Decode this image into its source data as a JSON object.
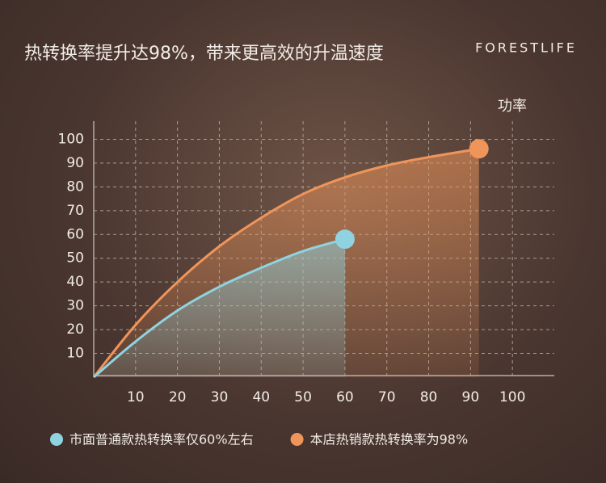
{
  "chart_data": {
    "type": "line",
    "title": "热转换率提升达98%，带来更高效的升温速度",
    "brand": "FORESTLIFE",
    "y_label": "功率",
    "series": [
      {
        "name": "市面普通款热转换率仅60%左右",
        "color": "#8fd3e0",
        "x": [
          0,
          10,
          20,
          30,
          40,
          50,
          60
        ],
        "values": [
          0,
          15,
          28,
          38,
          46,
          53,
          58
        ]
      },
      {
        "name": "本店热销款热转换率为98%",
        "color": "#f0955a",
        "x": [
          0,
          10,
          20,
          30,
          40,
          50,
          60,
          70,
          80,
          92
        ],
        "values": [
          0,
          22,
          40,
          55,
          67,
          77,
          84,
          89,
          92.5,
          96
        ]
      }
    ],
    "xlim": [
      0,
      110
    ],
    "ylim": [
      0,
      110
    ],
    "xticks": [
      10,
      20,
      30,
      40,
      50,
      60,
      70,
      80,
      90,
      100
    ],
    "yticks": [
      10,
      20,
      30,
      40,
      50,
      60,
      70,
      80,
      90,
      100
    ],
    "grid": true,
    "legend": "bottom"
  }
}
